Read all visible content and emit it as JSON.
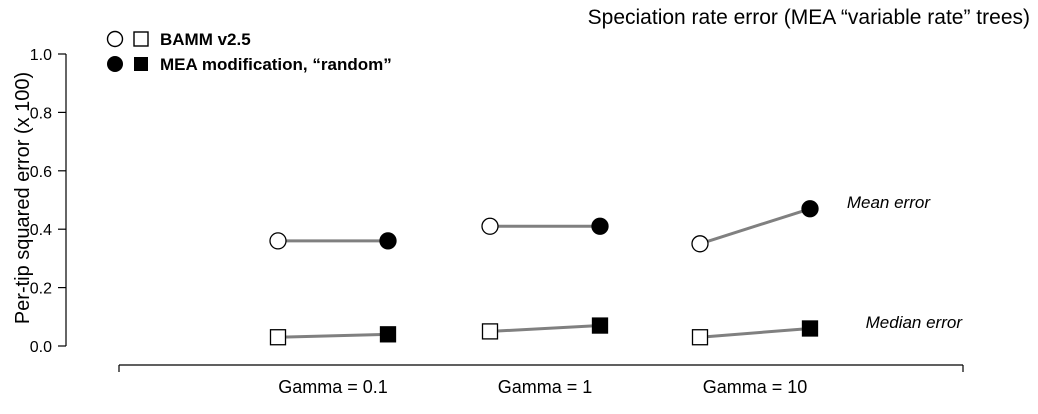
{
  "chart_data": {
    "type": "scatter",
    "title": "Speciation rate error (MEA “variable rate” trees)",
    "ylabel": "Per-tip squared error (x 100)",
    "xlabel": "",
    "ylim": [
      0.0,
      1.0
    ],
    "yticks": [
      "0.0",
      "0.2",
      "0.4",
      "0.6",
      "0.8",
      "1.0"
    ],
    "categories": [
      "Gamma = 0.1",
      "Gamma = 1",
      "Gamma = 10"
    ],
    "grid": false,
    "legend_position": "top-left",
    "legend": [
      {
        "label": "BAMM v2.5",
        "style": "open"
      },
      {
        "label": "MEA modification, “random”",
        "style": "filled"
      }
    ],
    "series": [
      {
        "name": "Mean error",
        "method": "BAMM v2.5",
        "marker": "circle",
        "fill": "open",
        "values": [
          0.36,
          0.41,
          0.35
        ]
      },
      {
        "name": "Mean error",
        "method": "MEA modification, “random”",
        "marker": "circle",
        "fill": "filled",
        "values": [
          0.36,
          0.41,
          0.47
        ]
      },
      {
        "name": "Median error",
        "method": "BAMM v2.5",
        "marker": "square",
        "fill": "open",
        "values": [
          0.03,
          0.05,
          0.03
        ]
      },
      {
        "name": "Median error",
        "method": "MEA modification, “random”",
        "marker": "square",
        "fill": "filled",
        "values": [
          0.04,
          0.07,
          0.06
        ]
      }
    ],
    "annotations": {
      "mean": "Mean error",
      "median": "Median error"
    },
    "colors": {
      "connector": "#808080",
      "marker": "#000000",
      "open_fill": "#ffffff"
    }
  }
}
